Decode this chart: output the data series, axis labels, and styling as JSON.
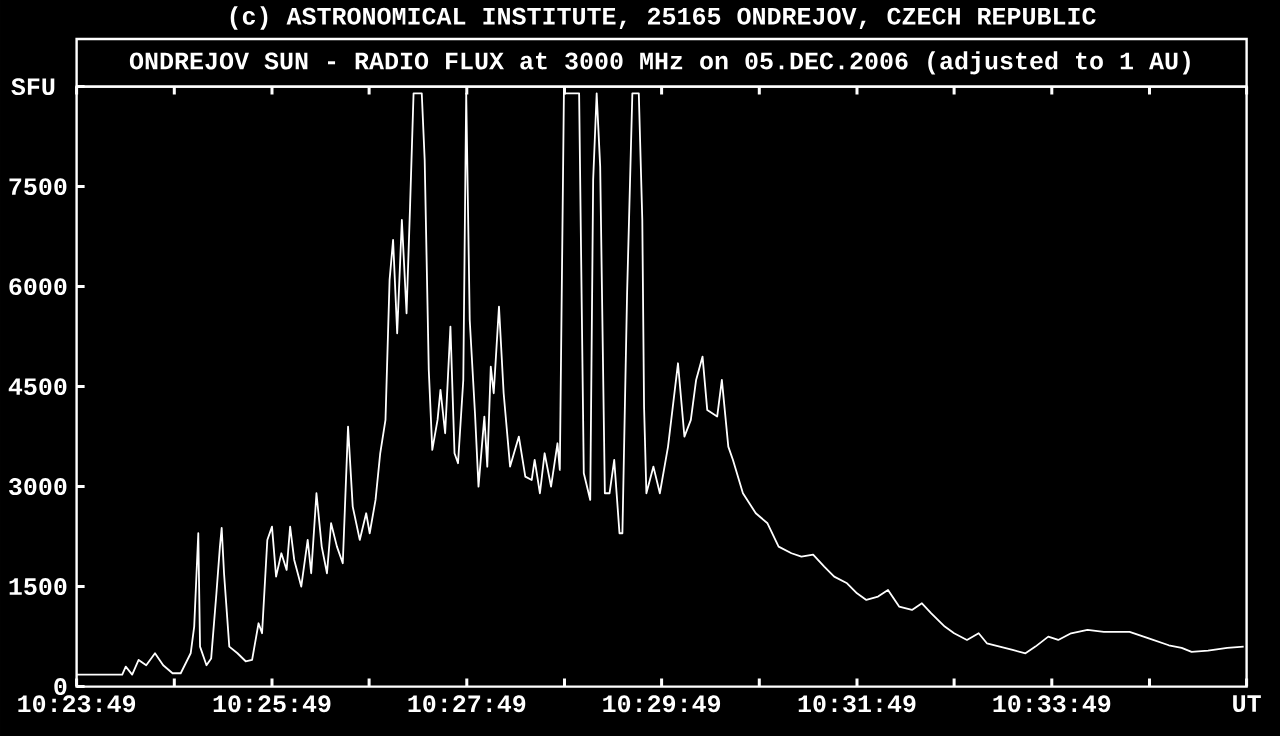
{
  "chart_data": {
    "type": "line",
    "title": "(c) ASTRONOMICAL INSTITUTE, 25165 ONDREJOV, CZECH REPUBLIC",
    "subtitle": "ONDREJOV SUN - RADIO FLUX at 3000 MHz on 05.DEC.2006 (adjusted to 1 AU)",
    "ylabel": "SFU",
    "x": [
      10.3969,
      10.4047,
      10.4053,
      10.4064,
      10.4075,
      10.4088,
      10.4103,
      10.4117,
      10.4133,
      10.4147,
      10.4164,
      10.417,
      10.4177,
      10.418,
      10.4191,
      10.4199,
      10.4208,
      10.4214,
      10.4217,
      10.4221,
      10.423,
      10.4244,
      10.4258,
      10.4269,
      10.428,
      10.4286,
      10.4295,
      10.4303,
      10.431,
      10.4319,
      10.4328,
      10.4334,
      10.4341,
      10.4353,
      10.4364,
      10.437,
      10.4379,
      10.4388,
      10.4397,
      10.4404,
      10.4414,
      10.4424,
      10.4433,
      10.4441,
      10.4453,
      10.4464,
      10.447,
      10.448,
      10.4488,
      10.4497,
      10.4504,
      10.451,
      10.4517,
      10.4525,
      10.4533,
      10.4539,
      10.4545,
      10.4559,
      10.4564,
      10.4571,
      10.4577,
      10.4586,
      10.4591,
      10.4599,
      10.4608,
      10.4615,
      10.4621,
      10.463,
      10.4635,
      10.4641,
      10.465,
      10.4656,
      10.4666,
      10.4671,
      10.4677,
      10.4682,
      10.4691,
      10.4699,
      10.471,
      10.4725,
      10.4736,
      10.4747,
      10.4752,
      10.4761,
      10.4769,
      10.478,
      10.4791,
      10.4795,
      10.4802,
      10.4828,
      10.4836,
      10.4847,
      10.4852,
      10.4858,
      10.4864,
      10.4872,
      10.488,
      10.4888,
      10.4897,
      10.4902,
      10.491,
      10.4919,
      10.493,
      10.4936,
      10.4939,
      10.4943,
      10.4955,
      10.4966,
      10.498,
      10.4997,
      10.5008,
      10.5019,
      10.5028,
      10.5039,
      10.5047,
      10.5064,
      10.5072,
      10.5083,
      10.5091,
      10.5108,
      10.513,
      10.515,
      10.5169,
      10.5191,
      10.5208,
      10.5228,
      10.5247,
      10.5264,
      10.5286,
      10.5303,
      10.5319,
      10.5339,
      10.5356,
      10.5375,
      10.5397,
      10.5414,
      10.543,
      10.5453,
      10.5469,
      10.5491,
      10.5511,
      10.5525,
      10.5547,
      10.5569,
      10.5591,
      10.5608,
      10.563,
      10.5647,
      10.5669,
      10.5697,
      10.5725,
      10.5769,
      10.5803,
      10.5836,
      10.5858,
      10.5875,
      10.5903,
      10.5936,
      10.5964
    ],
    "series": [
      {
        "color": "#ffffff",
        "values": [
          180,
          180,
          300,
          180,
          400,
          320,
          500,
          320,
          200,
          200,
          500,
          900,
          2300,
          600,
          320,
          420,
          1400,
          2100,
          2380,
          1700,
          600,
          500,
          380,
          400,
          950,
          800,
          2200,
          2400,
          1650,
          2000,
          1750,
          2400,
          1900,
          1500,
          2200,
          1700,
          2900,
          2100,
          1700,
          2450,
          2100,
          1850,
          3900,
          2700,
          2200,
          2600,
          2300,
          2800,
          3500,
          4000,
          6100,
          6700,
          5300,
          7000,
          5600,
          7200,
          8900,
          8900,
          7900,
          4750,
          3550,
          4000,
          4450,
          3800,
          5400,
          3500,
          3350,
          4600,
          8900,
          5500,
          4100,
          3000,
          4050,
          3300,
          4800,
          4400,
          5700,
          4400,
          3300,
          3750,
          3150,
          3100,
          3400,
          2900,
          3500,
          3000,
          3650,
          3250,
          8900,
          8900,
          3200,
          2800,
          7600,
          8900,
          7800,
          2900,
          2900,
          3400,
          2300,
          2300,
          5900,
          8900,
          8900,
          7000,
          4200,
          2900,
          3300,
          2900,
          3600,
          4850,
          3750,
          4000,
          4600,
          4950,
          4150,
          4050,
          4600,
          3600,
          3400,
          2900,
          2600,
          2450,
          2100,
          2000,
          1950,
          1980,
          1800,
          1650,
          1550,
          1400,
          1300,
          1350,
          1450,
          1200,
          1150,
          1250,
          1100,
          900,
          800,
          700,
          800,
          650,
          600,
          550,
          500,
          600,
          750,
          700,
          800,
          850,
          820,
          820,
          720,
          620,
          580,
          520,
          540,
          580,
          600
        ]
      }
    ],
    "xlim": [
      10.3969,
      10.5969
    ],
    "ylim": [
      0,
      9000
    ],
    "xticks": [
      {
        "value": 10.3969,
        "label": "10:23:49"
      },
      {
        "value": 10.4136,
        "label": null
      },
      {
        "value": 10.4303,
        "label": "10:25:49"
      },
      {
        "value": 10.4469,
        "label": null
      },
      {
        "value": 10.4636,
        "label": "10:27:49"
      },
      {
        "value": 10.4803,
        "label": null
      },
      {
        "value": 10.4969,
        "label": "10:29:49"
      },
      {
        "value": 10.5136,
        "label": null
      },
      {
        "value": 10.5303,
        "label": "10:31:49"
      },
      {
        "value": 10.5469,
        "label": null
      },
      {
        "value": 10.5636,
        "label": "10:33:49"
      },
      {
        "value": 10.5803,
        "label": null
      },
      {
        "value": 10.5969,
        "label": "UT"
      }
    ],
    "yticks": [
      0,
      1500,
      3000,
      4500,
      6000,
      7500,
      {
        "value": 9000,
        "label": null
      }
    ],
    "marker": "none",
    "line_style": "solid"
  }
}
